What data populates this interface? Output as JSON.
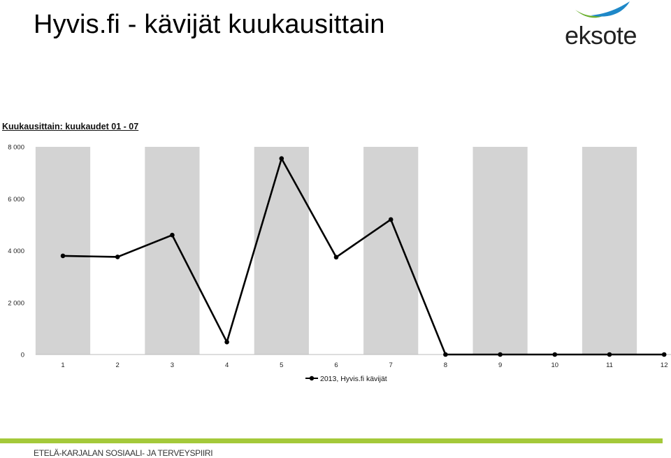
{
  "slide": {
    "title": "Hyvis.fi - kävijät kuukausittain",
    "logo_text": "eksote",
    "footer": "ETELÄ-KARJALAN SOSIAALI- JA TERVEYSPIIRI"
  },
  "colors": {
    "band": "#d3d3d3",
    "line": "#000000",
    "footer_bar": "#a4c93a",
    "logo_blue": "#1e88c8",
    "logo_green": "#6ab02e"
  },
  "chart_data": {
    "type": "line",
    "title": "Kuukausittain: kuukaudet 01 - 07",
    "x": [
      1,
      2,
      3,
      4,
      5,
      6,
      7,
      8,
      9,
      10,
      11,
      12
    ],
    "series": [
      {
        "name": "2013, Hyvis.fi kävijät",
        "values": [
          3800,
          3760,
          4600,
          480,
          7550,
          3750,
          5200,
          0,
          0,
          0,
          0,
          0
        ]
      }
    ],
    "ylim": [
      0,
      8000
    ],
    "yticks": [
      0,
      2000,
      4000,
      6000,
      8000
    ],
    "ytick_labels": [
      "0",
      "2 000",
      "4 000",
      "6 000",
      "8 000"
    ],
    "xtick_labels": [
      "1",
      "2",
      "3",
      "4",
      "5",
      "6",
      "7",
      "8",
      "9",
      "10",
      "11",
      "12"
    ],
    "shaded_bands_at": [
      1,
      3,
      5,
      7,
      9,
      11
    ],
    "legend_position": "bottom-center",
    "grid": false
  }
}
